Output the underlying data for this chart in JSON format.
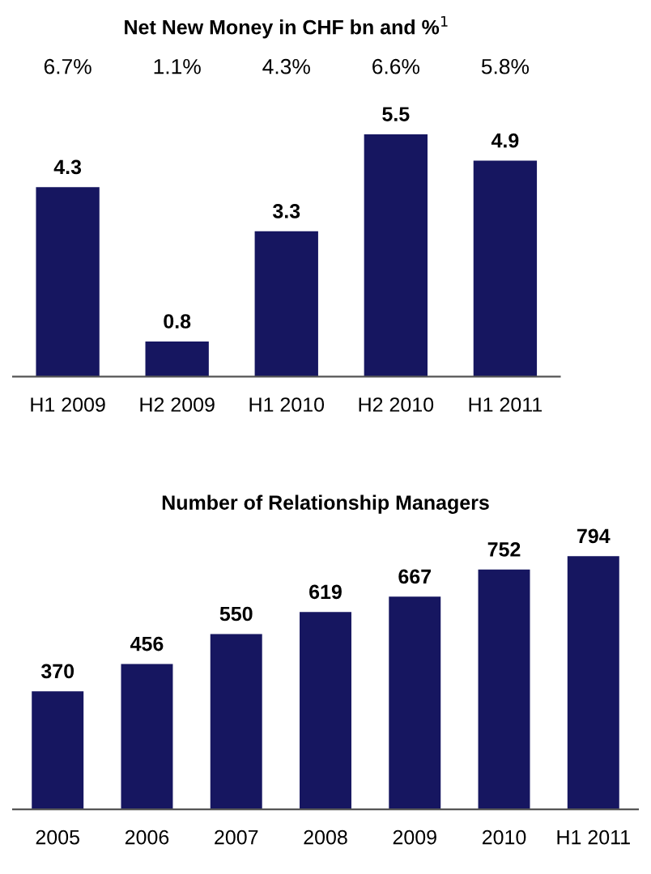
{
  "chart_data": [
    {
      "type": "bar",
      "title": "Net New Money in CHF bn and %$^{1}$",
      "categories": [
        "H1 2009",
        "H2 2009",
        "H1 2010",
        "H2 2010",
        "H1 2011"
      ],
      "values": [
        4.3,
        0.8,
        3.3,
        5.5,
        4.9
      ],
      "color": "#161660",
      "data_labels": true,
      "annotations": [
        "6.7%",
        "1.1%",
        "4.3%",
        "6.6%",
        "5.8%"
      ]
    },
    {
      "type": "bar",
      "title": "Number of Relationship Managers",
      "categories": [
        "2005",
        "2006",
        "2007",
        "2008",
        "2009",
        "2010",
        "H1 2011"
      ],
      "values": [
        370,
        456,
        550,
        619,
        667,
        752,
        794
      ],
      "color": "#161660",
      "data_labels": true
    }
  ]
}
